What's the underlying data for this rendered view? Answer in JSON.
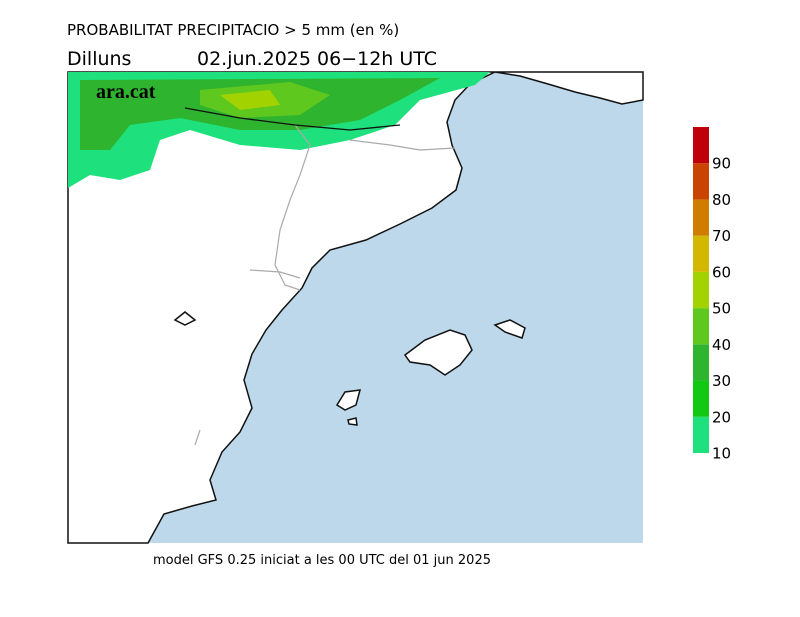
{
  "header": {
    "title": "PROBABILITAT PRECIPITACIO > 5 mm (en %)",
    "day": "Dilluns",
    "period": "02.jun.2025 06−12h UTC"
  },
  "logo": "ara.cat",
  "legend": {
    "lim": [
      10,
      100
    ],
    "ticks": [
      10,
      20,
      30,
      40,
      50,
      60,
      70,
      80,
      90
    ],
    "colors": [
      "#1ee07c",
      "#12c812",
      "#2eb42e",
      "#5ec81e",
      "#a2d200",
      "#d2b800",
      "#d07c00",
      "#c84400",
      "#c00008"
    ]
  },
  "footer": "model GFS 0.25 iniciat a les 00 UTC del 01 jun 2025"
}
